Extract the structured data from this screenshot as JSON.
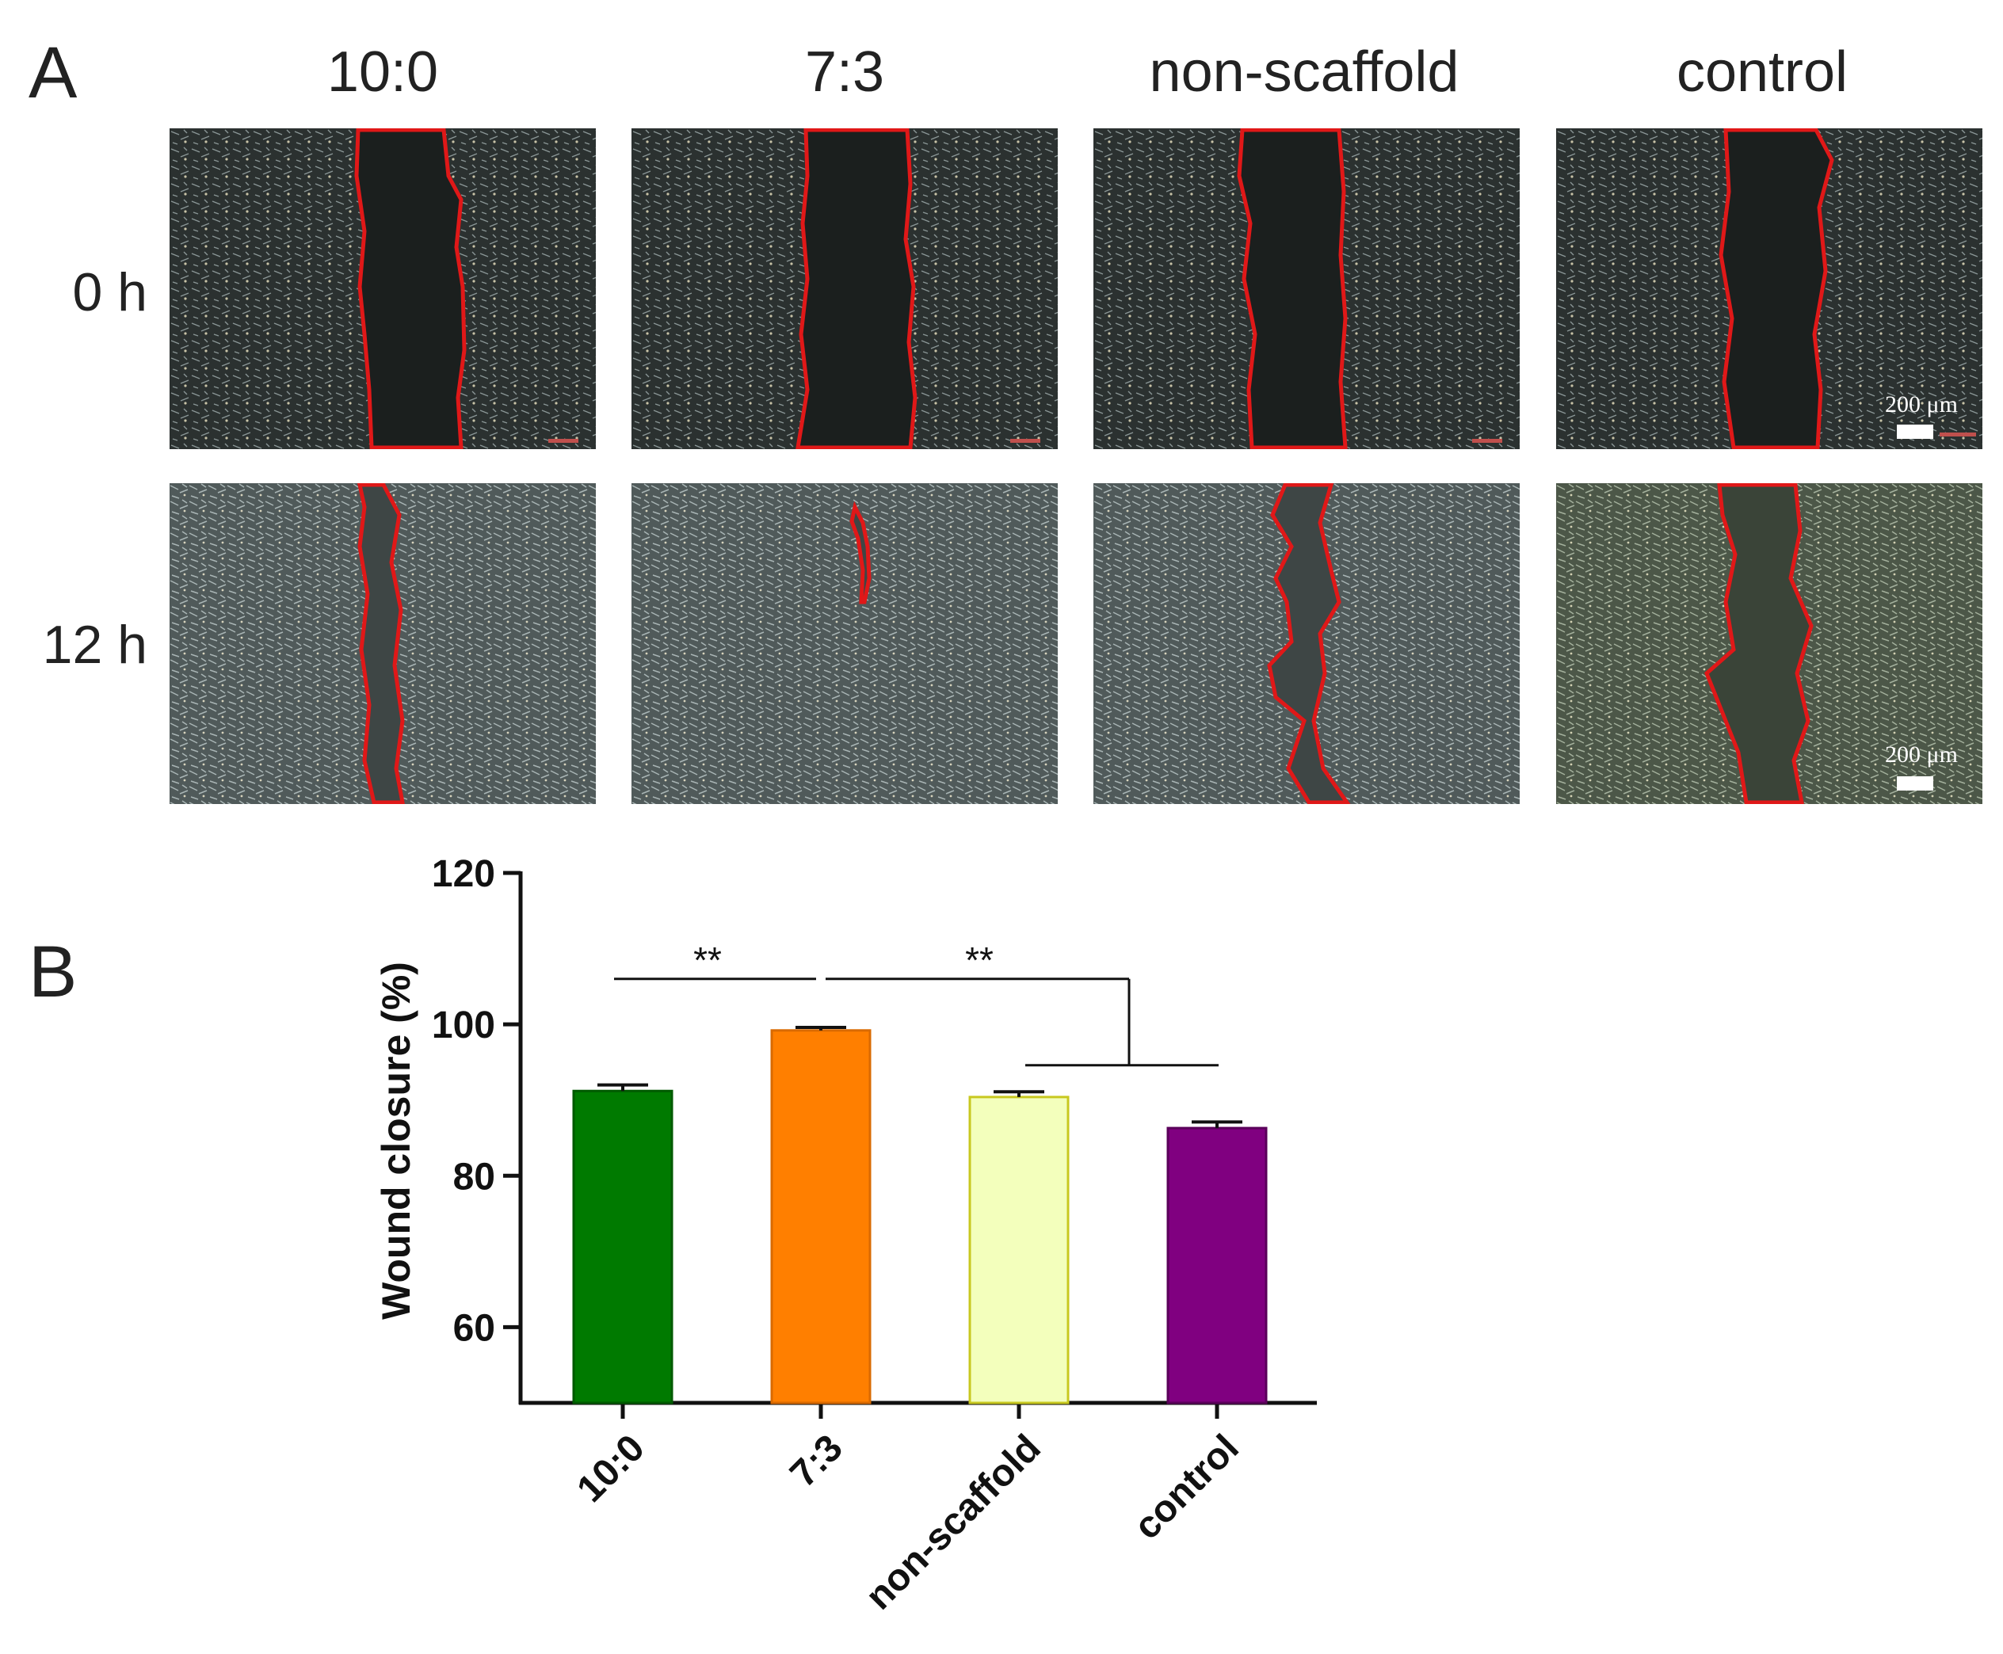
{
  "panel_a": {
    "label": "A",
    "columns": [
      "10:0",
      "7:3",
      "non-scaffold",
      "control"
    ],
    "rows": [
      "0 h",
      "12 h"
    ],
    "scale_bar": "200 μm",
    "colors": {
      "wound_outline": "#e01818",
      "cells_background": "#2b3130"
    }
  },
  "panel_b": {
    "label": "B"
  },
  "chart_data": {
    "type": "bar",
    "categories": [
      "10:0",
      "7:3",
      "non-scaffold",
      "control"
    ],
    "values": [
      91.2,
      99.2,
      90.4,
      86.3
    ],
    "errors": [
      0.8,
      0.4,
      0.7,
      0.8
    ],
    "colors": [
      "#007a00",
      "#ff7f00",
      "#f3ffbc",
      "#800080"
    ],
    "edge_colors": [
      "#005a00",
      "#d96a00",
      "#c8c820",
      "#5a005a"
    ],
    "title": "",
    "xlabel": "",
    "ylabel": "Wound  closure (%)",
    "ylim": [
      50,
      120
    ],
    "yticks": [
      60,
      80,
      100,
      120
    ],
    "significance": [
      {
        "from": "10:0",
        "to": "7:3",
        "label": "**"
      },
      {
        "from": "7:3",
        "to": [
          "non-scaffold",
          "control"
        ],
        "label": "**"
      }
    ],
    "grid": false,
    "legend": "none"
  }
}
